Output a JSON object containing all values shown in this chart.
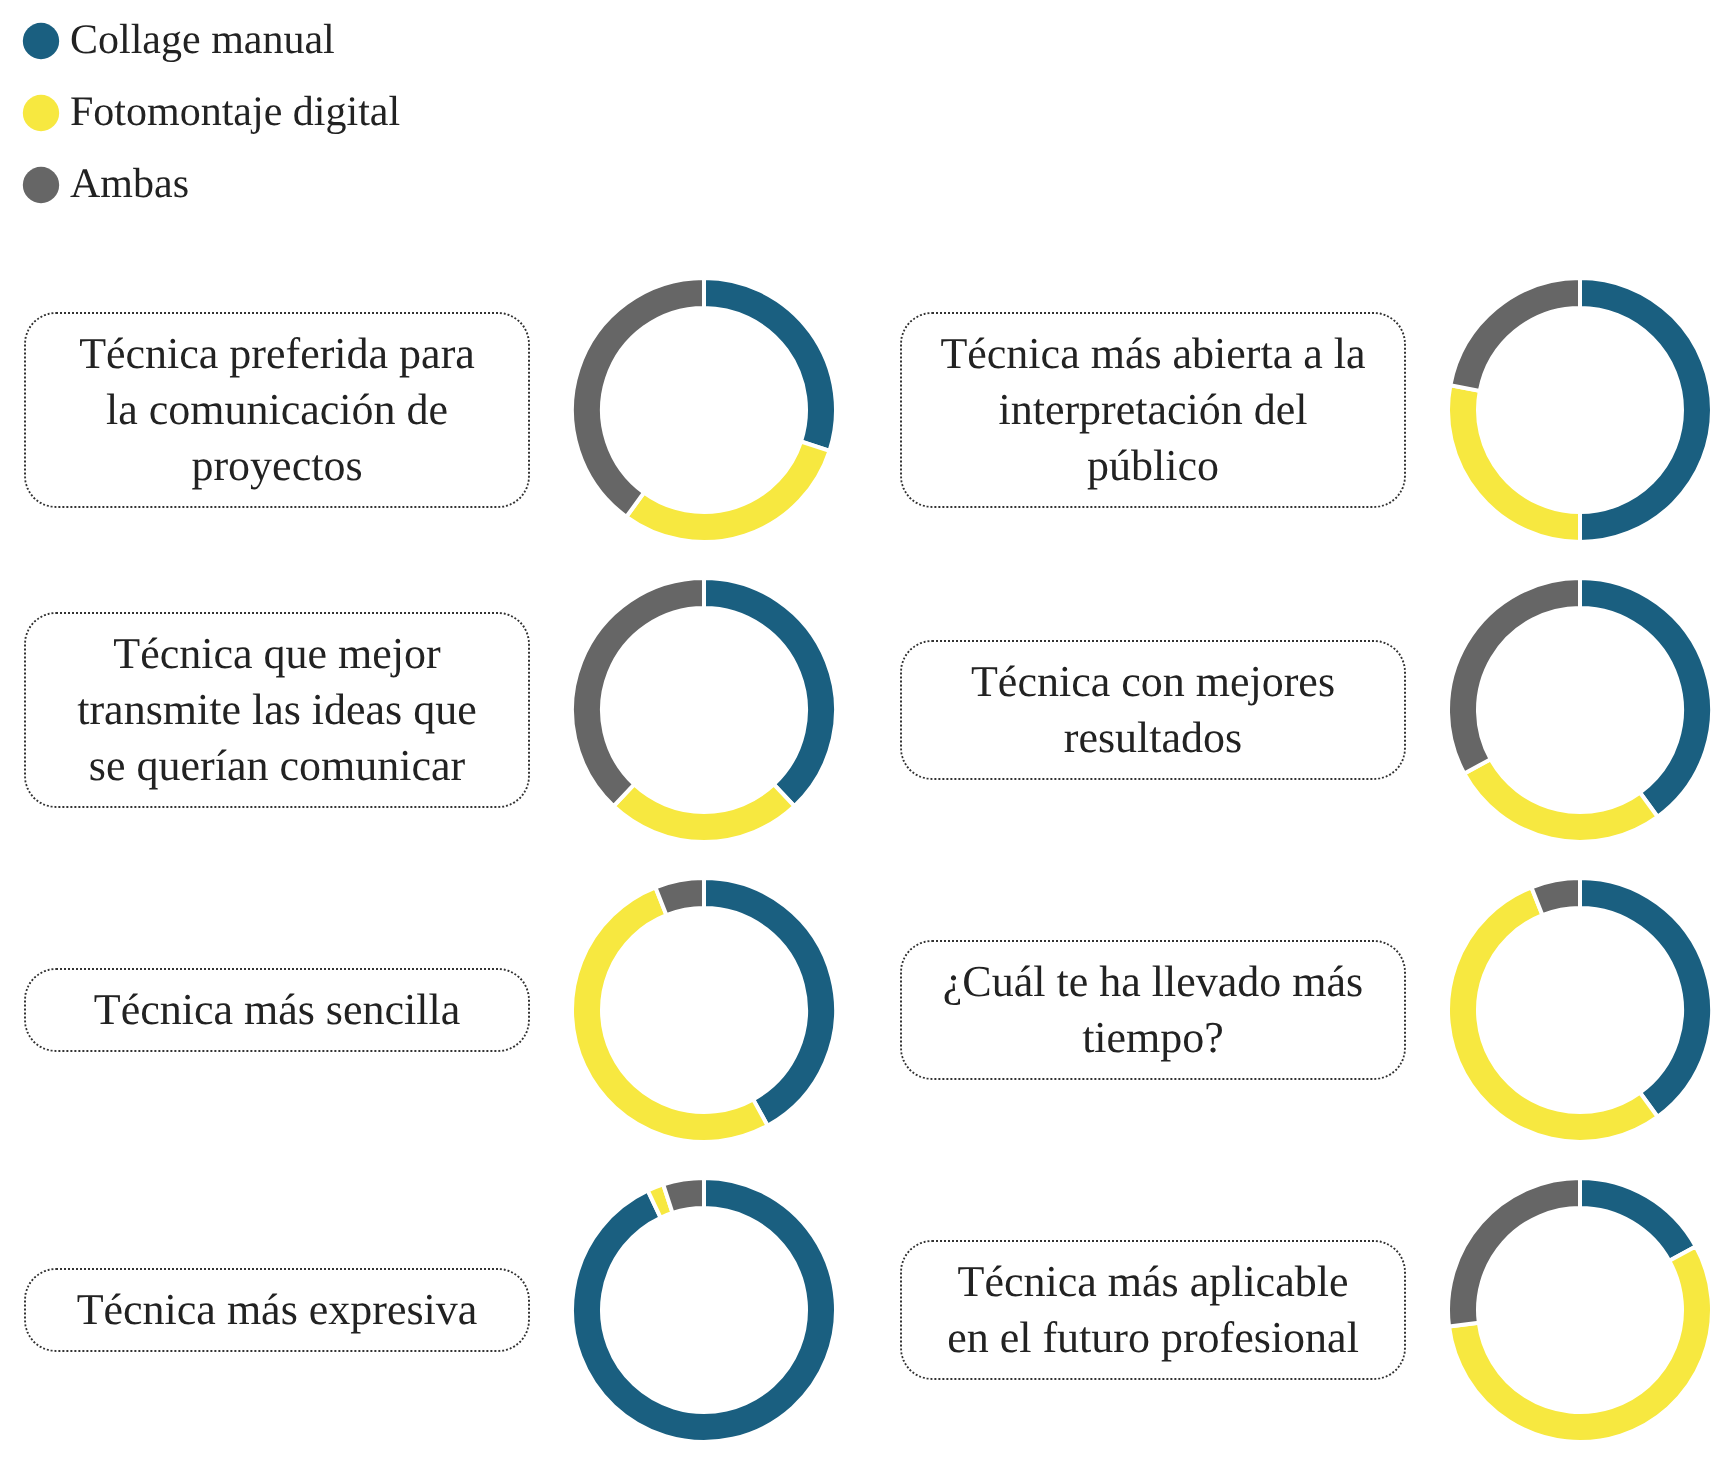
{
  "chart_data": [
    {
      "type": "donut",
      "title": "Técnica preferida para la comunicación de proyectos",
      "categories": [
        "Collage manual",
        "Fotomontaje digital",
        "Ambas"
      ],
      "values": [
        30,
        30,
        40
      ],
      "colors": [
        "#1a5f80",
        "#f7e840",
        "#666666"
      ],
      "legend": "top left"
    },
    {
      "type": "donut",
      "title": "Técnica más abierta a la interpretación del público",
      "categories": [
        null,
        null,
        null
      ],
      "values": [
        50,
        28,
        22
      ],
      "colors": [
        "#1a5f80",
        "#f7e840",
        "#666666"
      ]
    },
    {
      "type": "donut",
      "title": "Técnica que mejor transmite las ideas que se querían comunicar",
      "categories": [
        null,
        null,
        null
      ],
      "values": [
        38,
        24,
        38
      ],
      "colors": [
        "#1a5f80",
        "#f7e840",
        "#666666"
      ]
    },
    {
      "type": "donut",
      "title": "Técnica con mejores resultados",
      "categories": [
        null,
        null,
        null
      ],
      "values": [
        40,
        27,
        33
      ],
      "colors": [
        "#1a5f80",
        "#f7e840",
        "#666666"
      ]
    },
    {
      "type": "donut",
      "title": "Técnica más sencilla",
      "categories": [
        null,
        null,
        null
      ],
      "values": [
        42,
        52,
        6
      ],
      "colors": [
        "#1a5f80",
        "#f7e840",
        "#666666"
      ]
    },
    {
      "type": "donut",
      "title": "¿Cuál te ha llevado más tiempo?",
      "categories": [
        null,
        null,
        null
      ],
      "values": [
        40,
        54,
        6
      ],
      "colors": [
        "#1a5f80",
        "#f7e840",
        "#666666"
      ]
    },
    {
      "type": "donut",
      "title": "Técnica más expresiva",
      "categories": [
        null,
        null,
        null
      ],
      "values": [
        93,
        2,
        5
      ],
      "colors": [
        "#1a5f80",
        "#f7e840",
        "#666666"
      ]
    },
    {
      "type": "donut",
      "title": "Técnica más aplicable en el futuro profesional",
      "categories": [
        null,
        null,
        null
      ],
      "values": [
        17,
        56,
        27
      ],
      "colors": [
        "#1a5f80",
        "#f7e840",
        "#666666"
      ]
    }
  ]
}
